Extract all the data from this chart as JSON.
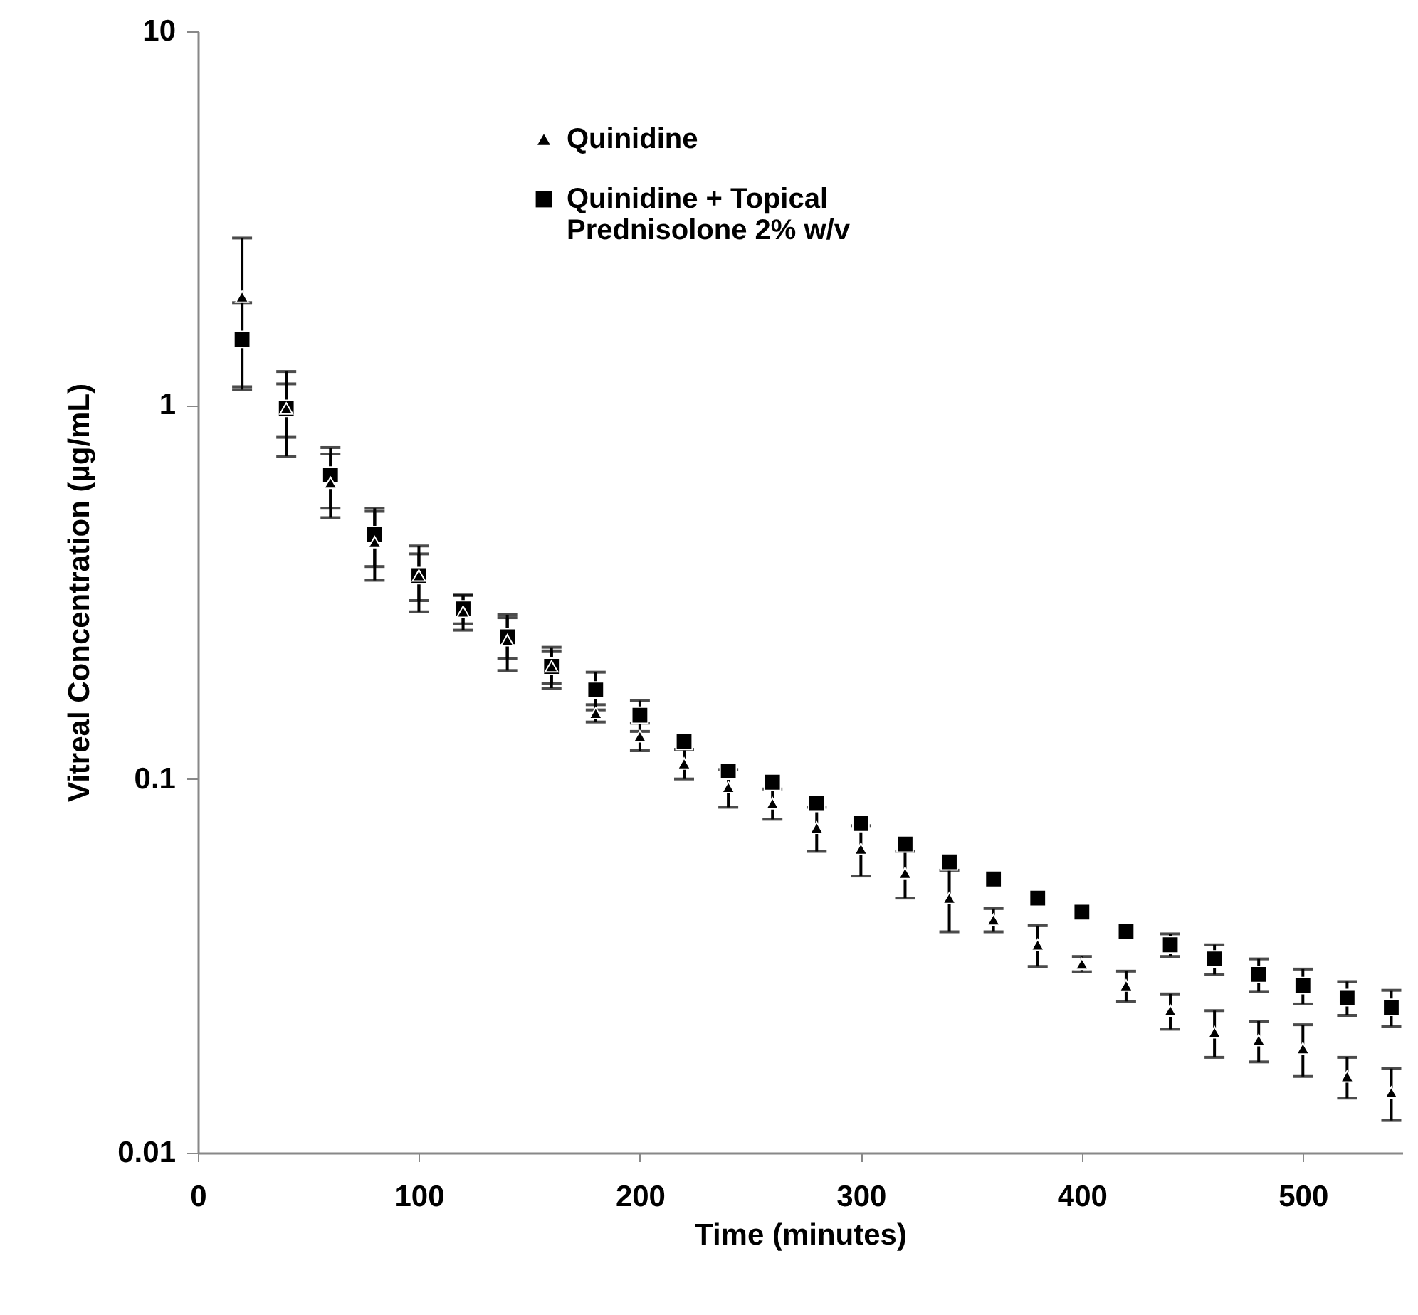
{
  "chart_data": {
    "type": "scatter",
    "xlabel": "Time (minutes)",
    "ylabel": "Vitreal Concentration (µg/mL)",
    "x": [
      20,
      40,
      60,
      80,
      100,
      120,
      140,
      160,
      180,
      200,
      220,
      240,
      260,
      280,
      300,
      320,
      340,
      360,
      380,
      400,
      420,
      440,
      460,
      480,
      500,
      520,
      540
    ],
    "xlim": [
      0,
      545
    ],
    "xticks": [
      0,
      100,
      200,
      300,
      400,
      500
    ],
    "ylim": [
      0.01,
      10
    ],
    "yticks": [
      0.01,
      0.1,
      1,
      10
    ],
    "log": "y",
    "grid": false,
    "legend": "top",
    "series": [
      {
        "name": "Quinidine",
        "color": "#000000",
        "marker": "triangle",
        "values": [
          1.95,
          0.98,
          0.62,
          0.43,
          0.35,
          0.28,
          0.235,
          0.2,
          0.15,
          0.13,
          0.11,
          0.095,
          0.086,
          0.074,
          0.065,
          0.056,
          0.048,
          0.042,
          0.036,
          0.032,
          0.028,
          0.024,
          0.021,
          0.02,
          0.019,
          0.016,
          0.0145
        ],
        "errors": [
          0.85,
          0.25,
          0.12,
          0.09,
          0.07,
          0.03,
          0.04,
          0.025,
          0.008,
          0.011,
          0.01,
          0.011,
          0.008,
          0.01,
          0.01,
          0.008,
          0.009,
          0.003,
          0.0045,
          0.0015,
          0.0026,
          0.0026,
          0.003,
          0.0025,
          0.003,
          0.002,
          0.0023
        ]
      },
      {
        "name": "Quinidine + Topical Prednisolone 2% w/v",
        "color": "#000000",
        "marker": "square",
        "values": [
          1.5,
          0.98,
          0.65,
          0.45,
          0.35,
          0.285,
          0.24,
          0.2,
          0.173,
          0.148,
          0.126,
          0.105,
          0.098,
          0.086,
          0.076,
          0.067,
          0.06,
          0.054,
          0.048,
          0.044,
          0.039,
          0.036,
          0.033,
          0.03,
          0.028,
          0.026,
          0.0245
        ],
        "errors": [
          0.38,
          0.16,
          0.12,
          0.08,
          0.05,
          0.025,
          0.03,
          0.02,
          0.02,
          0.014,
          null,
          null,
          null,
          null,
          null,
          null,
          null,
          null,
          null,
          null,
          null,
          0.0025,
          0.003,
          0.003,
          0.003,
          0.0027,
          0.0027
        ]
      }
    ]
  }
}
